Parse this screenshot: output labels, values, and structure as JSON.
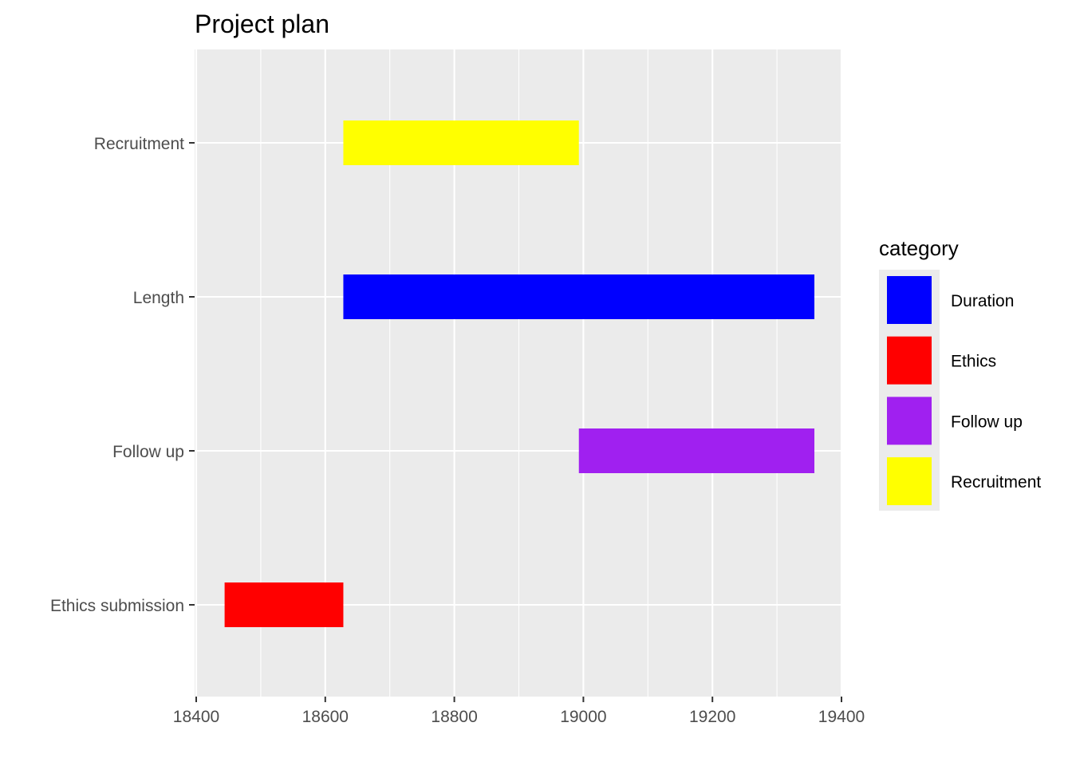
{
  "chart_data": {
    "type": "bar",
    "orientation": "horizontal-range",
    "title": "Project plan",
    "xlabel": "",
    "ylabel": "",
    "xlim": [
      18400,
      19400
    ],
    "x_ticks": [
      18400,
      18600,
      18800,
      19000,
      19200,
      19400
    ],
    "categories": [
      "Recruitment",
      "Length",
      "Follow up",
      "Ethics submission"
    ],
    "bars": [
      {
        "task": "Recruitment",
        "start": 18628,
        "end": 18993,
        "category": "Recruitment"
      },
      {
        "task": "Length",
        "start": 18628,
        "end": 19358,
        "category": "Duration"
      },
      {
        "task": "Follow up",
        "start": 18993,
        "end": 19358,
        "category": "Follow up"
      },
      {
        "task": "Ethics submission",
        "start": 18444,
        "end": 18628,
        "category": "Ethics"
      }
    ],
    "legend": {
      "title": "category",
      "position": "right",
      "items": [
        {
          "label": "Duration",
          "color": "#0000ff"
        },
        {
          "label": "Ethics",
          "color": "#ff0000"
        },
        {
          "label": "Follow up",
          "color": "#a020f0"
        },
        {
          "label": "Recruitment",
          "color": "#ffff00"
        }
      ]
    },
    "grid": true,
    "panel_background": "#ebebeb",
    "grid_color": "#ffffff"
  }
}
